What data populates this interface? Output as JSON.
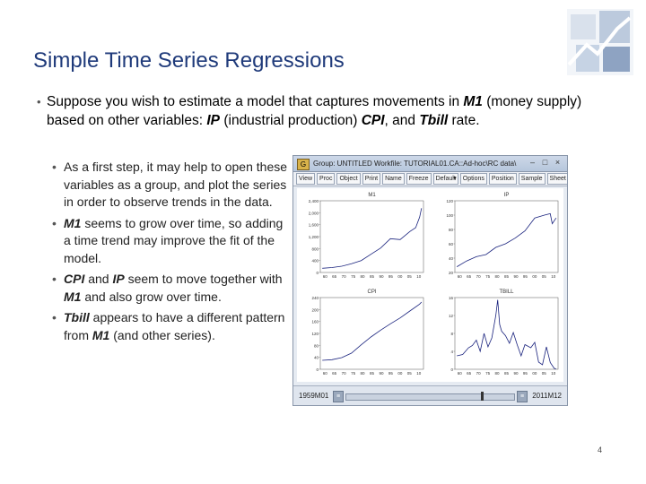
{
  "slide": {
    "title": "Simple Time Series Regressions",
    "page_number": "4",
    "main_bullet": {
      "dot": "•",
      "segments": [
        {
          "text": "Suppose you wish to estimate a model that captures movements in ",
          "style": "normal"
        },
        {
          "text": "M1",
          "style": "bi"
        },
        {
          "text": " (money supply) based on other variables: ",
          "style": "normal"
        },
        {
          "text": "IP",
          "style": "bi"
        },
        {
          "text": " (industrial production) ",
          "style": "normal"
        },
        {
          "text": "CPI",
          "style": "bi"
        },
        {
          "text": ", and ",
          "style": "normal"
        },
        {
          "text": "Tbill",
          "style": "bi"
        },
        {
          "text": " rate.",
          "style": "normal"
        }
      ]
    },
    "sub_bullets": [
      {
        "segments": [
          {
            "text": "As a first step, it may help to open these variables as a group, and plot the series in order to observe trends in the data.",
            "style": "normal"
          }
        ]
      },
      {
        "segments": [
          {
            "text": "M1",
            "style": "bi"
          },
          {
            "text": " seems to grow over time, so adding a time trend may improve the fit of the model.",
            "style": "normal"
          }
        ]
      },
      {
        "segments": [
          {
            "text": "CPI",
            "style": "bi"
          },
          {
            "text": " and ",
            "style": "normal"
          },
          {
            "text": "IP",
            "style": "bi"
          },
          {
            "text": " seem to move together with ",
            "style": "normal"
          },
          {
            "text": "M1",
            "style": "bi"
          },
          {
            "text": " and also grow over time.",
            "style": "normal"
          }
        ]
      },
      {
        "segments": [
          {
            "text": "Tbill",
            "style": "bi"
          },
          {
            "text": " appears to have a different pattern from ",
            "style": "normal"
          },
          {
            "text": "M1",
            "style": "bi"
          },
          {
            "text": " (and other series).",
            "style": "normal"
          }
        ]
      }
    ]
  },
  "window": {
    "app_icon": "G",
    "title": "Group: UNTITLED   Workfile: TUTORIAL01.CA::Ad-hoc\\RC data\\",
    "controls": [
      "–",
      "□",
      "×"
    ],
    "toolbar": [
      "View",
      "Proc",
      "Object",
      "Print",
      "Name",
      "Freeze",
      "Default",
      "Options",
      "Position",
      "Sample",
      "Sheet"
    ],
    "status_start": "1959M01",
    "status_end": "2011M12",
    "colors": {
      "line": "#1a237e",
      "border": "#8a97aa"
    }
  },
  "chart_data": [
    {
      "type": "line",
      "title": "M1",
      "ylim": [
        0,
        2400
      ],
      "y_ticks": [
        "2,400",
        "2,000",
        "1,600",
        "1,200",
        "800",
        "400",
        "0"
      ],
      "x_ticks": [
        "60",
        "65",
        "70",
        "75",
        "80",
        "85",
        "90",
        "95",
        "00",
        "05",
        "10"
      ],
      "x": [
        1960,
        1965,
        1970,
        1975,
        1980,
        1985,
        1990,
        1995,
        2000,
        2005,
        2008,
        2010,
        2011
      ],
      "values": [
        140,
        165,
        210,
        290,
        400,
        610,
        820,
        1130,
        1100,
        1370,
        1500,
        1850,
        2150
      ]
    },
    {
      "type": "line",
      "title": "IP",
      "ylim": [
        20,
        120
      ],
      "y_ticks": [
        "120",
        "100",
        "80",
        "60",
        "40",
        "20"
      ],
      "x_ticks": [
        "60",
        "65",
        "70",
        "75",
        "80",
        "85",
        "90",
        "95",
        "00",
        "05",
        "10"
      ],
      "x": [
        1960,
        1965,
        1970,
        1975,
        1980,
        1985,
        1990,
        1995,
        2000,
        2005,
        2008,
        2009,
        2011
      ],
      "values": [
        28,
        36,
        42,
        45,
        55,
        60,
        68,
        78,
        96,
        100,
        102,
        88,
        96
      ]
    },
    {
      "type": "line",
      "title": "CPI",
      "ylim": [
        0,
        240
      ],
      "y_ticks": [
        "240",
        "200",
        "160",
        "120",
        "80",
        "40",
        "0"
      ],
      "x_ticks": [
        "60",
        "65",
        "70",
        "75",
        "80",
        "85",
        "90",
        "95",
        "00",
        "05",
        "10"
      ],
      "x": [
        1960,
        1965,
        1970,
        1975,
        1980,
        1985,
        1990,
        1995,
        2000,
        2005,
        2010,
        2011
      ],
      "values": [
        30,
        32,
        39,
        54,
        82,
        108,
        131,
        152,
        172,
        195,
        218,
        225
      ]
    },
    {
      "type": "line",
      "title": "TBILL",
      "ylim": [
        0,
        16
      ],
      "y_ticks": [
        "16",
        "12",
        "8",
        "4",
        "0"
      ],
      "x_ticks": [
        "60",
        "65",
        "70",
        "75",
        "80",
        "85",
        "90",
        "95",
        "00",
        "05",
        "10"
      ],
      "x": [
        1960,
        1963,
        1966,
        1968,
        1970,
        1972,
        1974,
        1976,
        1978,
        1980,
        1981,
        1982,
        1983,
        1985,
        1987,
        1989,
        1991,
        1993,
        1995,
        1998,
        2000,
        2002,
        2004,
        2006,
        2008,
        2010,
        2011
      ],
      "values": [
        3,
        3.3,
        4.8,
        5.3,
        6.5,
        4,
        8,
        5,
        7,
        12,
        15.5,
        10,
        8.5,
        7.5,
        5.8,
        8.2,
        5.5,
        3,
        5.5,
        4.8,
        6,
        1.6,
        1,
        5,
        1.5,
        0.2,
        0.1
      ]
    }
  ]
}
